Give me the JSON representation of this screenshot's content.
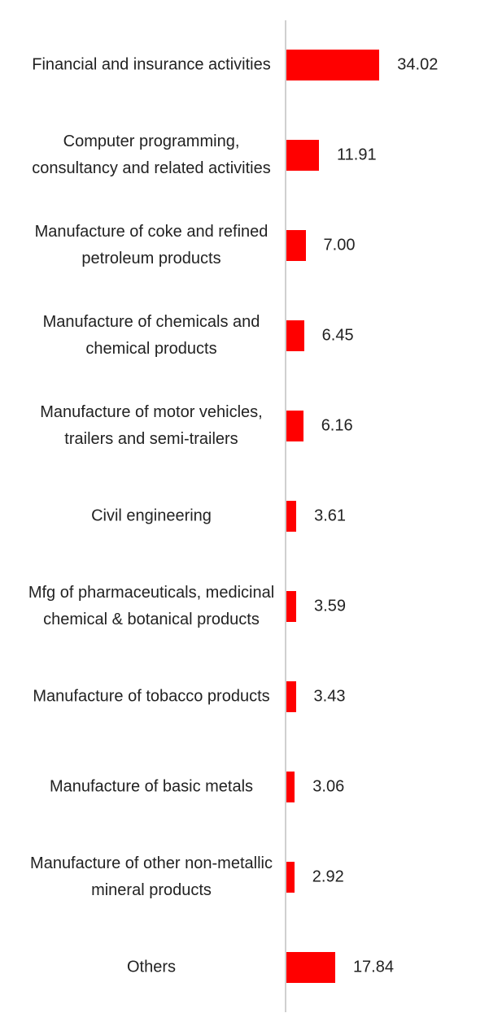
{
  "chart_data": {
    "type": "bar",
    "orientation": "horizontal",
    "color": "#ff0000",
    "categories": [
      "Financial and insurance activities",
      "Computer programming, consultancy and related activities",
      "Manufacture of coke and refined petroleum products",
      "Manufacture of chemicals and chemical products",
      "Manufacture of motor vehicles, trailers and semi-trailers",
      "Civil engineering",
      "Mfg of pharmaceuticals, medicinal chemical & botanical products",
      "Manufacture of tobacco products",
      "Manufacture of basic metals",
      "Manufacture of other non-metallic mineral products",
      "Others"
    ],
    "values": [
      34.02,
      11.91,
      7,
      6.45,
      6.16,
      3.61,
      3.59,
      3.43,
      3.06,
      2.92,
      17.84
    ],
    "value_labels": [
      "34.02",
      "11.91",
      "7.00",
      "6.45",
      "6.16",
      "3.61",
      "3.59",
      "3.43",
      "3.06",
      "2.92",
      "17.84"
    ]
  }
}
